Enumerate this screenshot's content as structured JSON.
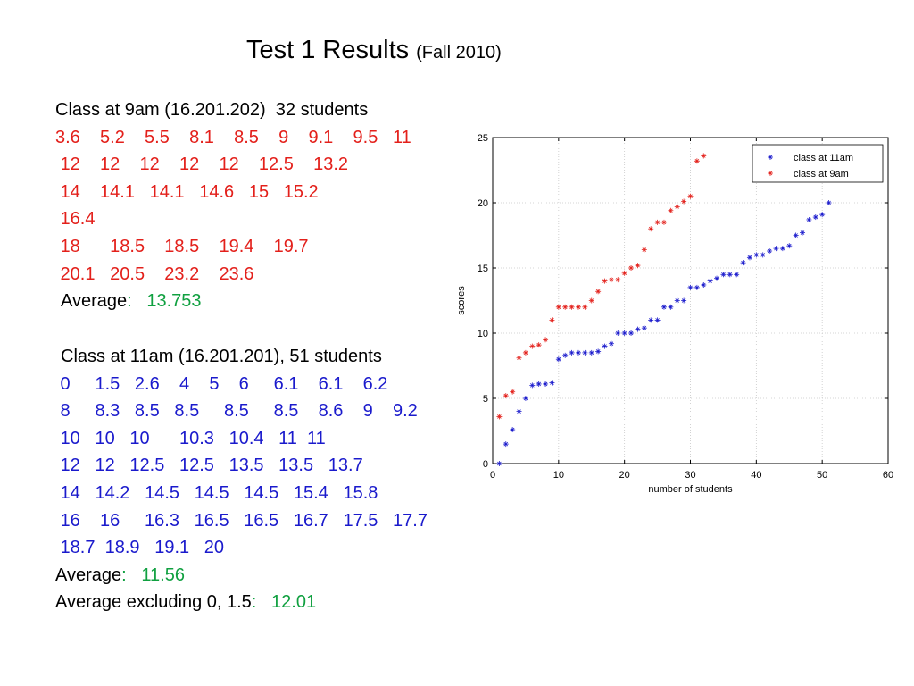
{
  "slide": {
    "title": "Test 1 Results",
    "subtitle": "(Fall 2010)"
  },
  "class9": {
    "header": "Class at 9am (16.201.202)  32 students",
    "rows": [
      "3.6    5.2    5.5    8.1    8.5    9    9.1    9.5   11",
      " 12    12    12    12    12    12.5    13.2",
      " 14    14.1   14.1   14.6   15   15.2",
      " 16.4",
      " 18      18.5    18.5    19.4    19.7",
      " 20.1   20.5    23.2    23.6"
    ],
    "avg_label": "Average",
    "avg_colon": ":",
    "avg_value": "13.753"
  },
  "class11": {
    "header": "Class at 11am (16.201.201), 51 students",
    "rows": [
      " 0     1.5   2.6    4    5    6     6.1    6.1    6.2",
      " 8     8.3   8.5   8.5     8.5     8.5    8.6    9    9.2",
      " 10   10   10      10.3   10.4   11  11",
      " 12   12   12.5   12.5   13.5   13.5   13.7",
      " 14   14.2   14.5   14.5   14.5   15.4   15.8",
      " 16    16     16.3   16.5   16.5   16.7   17.5   17.7",
      " 18.7  18.9   19.1   20"
    ],
    "avg_label": "Average",
    "avg_colon": ":",
    "avg_value": "11.56",
    "avg_excl_label": "Average excluding 0, 1.5",
    "avg_excl_colon": ":",
    "avg_excl_value": "12.01"
  },
  "colors": {
    "class9": "#e3201b",
    "class11": "#1a1acc",
    "average": "#10a040"
  },
  "chart_data": {
    "type": "scatter",
    "xlabel": "number of students",
    "ylabel": "scores",
    "xlim": [
      0,
      60
    ],
    "ylim": [
      0,
      25
    ],
    "xticks": [
      0,
      10,
      20,
      30,
      40,
      50,
      60
    ],
    "yticks": [
      0,
      5,
      10,
      15,
      20,
      25
    ],
    "grid": true,
    "legend_position": "top-right",
    "series": [
      {
        "name": "class at 11am",
        "color": "#1a1acc",
        "x": [
          1,
          2,
          3,
          4,
          5,
          6,
          7,
          8,
          9,
          10,
          11,
          12,
          13,
          14,
          15,
          16,
          17,
          18,
          19,
          20,
          21,
          22,
          23,
          24,
          25,
          26,
          27,
          28,
          29,
          30,
          31,
          32,
          33,
          34,
          35,
          36,
          37,
          38,
          39,
          40,
          41,
          42,
          43,
          44,
          45,
          46,
          47,
          48,
          49,
          50,
          51
        ],
        "values": [
          0,
          1.5,
          2.6,
          4,
          5,
          6,
          6.1,
          6.1,
          6.2,
          8,
          8.3,
          8.5,
          8.5,
          8.5,
          8.5,
          8.6,
          9,
          9.2,
          10,
          10,
          10,
          10.3,
          10.4,
          11,
          11,
          12,
          12,
          12.5,
          12.5,
          13.5,
          13.5,
          13.7,
          14,
          14.2,
          14.5,
          14.5,
          14.5,
          15.4,
          15.8,
          16,
          16,
          16.3,
          16.5,
          16.5,
          16.7,
          17.5,
          17.7,
          18.7,
          18.9,
          19.1,
          20
        ]
      },
      {
        "name": "class at 9am",
        "color": "#e3201b",
        "x": [
          1,
          2,
          3,
          4,
          5,
          6,
          7,
          8,
          9,
          10,
          11,
          12,
          13,
          14,
          15,
          16,
          17,
          18,
          19,
          20,
          21,
          22,
          23,
          24,
          25,
          26,
          27,
          28,
          29,
          30,
          31,
          32
        ],
        "values": [
          3.6,
          5.2,
          5.5,
          8.1,
          8.5,
          9,
          9.1,
          9.5,
          11,
          12,
          12,
          12,
          12,
          12,
          12.5,
          13.2,
          14,
          14.1,
          14.1,
          14.6,
          15,
          15.2,
          16.4,
          18,
          18.5,
          18.5,
          19.4,
          19.7,
          20.1,
          20.5,
          23.2,
          23.6
        ]
      }
    ]
  }
}
